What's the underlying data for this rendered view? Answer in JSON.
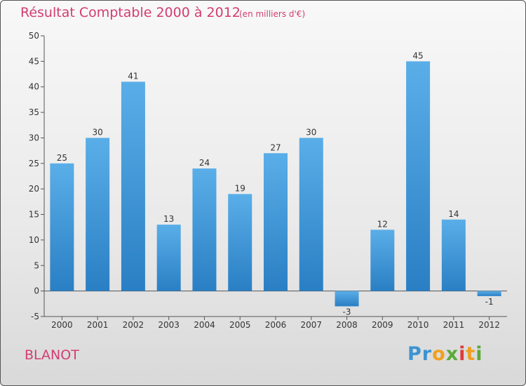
{
  "chart_data": {
    "type": "bar",
    "title": "Résultat Comptable 2000 à 2012",
    "subtitle": "(en milliers d'€)",
    "categories": [
      "2000",
      "2001",
      "2002",
      "2003",
      "2004",
      "2005",
      "2006",
      "2007",
      "2008",
      "2009",
      "2010",
      "2011",
      "2012"
    ],
    "values": [
      25,
      30,
      41,
      13,
      24,
      19,
      27,
      30,
      -3,
      12,
      45,
      14,
      -1
    ],
    "ylim": [
      -5,
      50
    ],
    "yticks": [
      -5,
      0,
      5,
      10,
      15,
      20,
      25,
      30,
      35,
      40,
      45,
      50
    ],
    "grid": false,
    "xlabel": "",
    "ylabel": ""
  },
  "place": "BLANOT",
  "logo": {
    "text": "Proxiti"
  },
  "colors": {
    "title": "#d23d71",
    "bar_top": "#5aaee8",
    "bar_bottom": "#2a7fc4",
    "axis": "#555555",
    "text": "#333333"
  }
}
